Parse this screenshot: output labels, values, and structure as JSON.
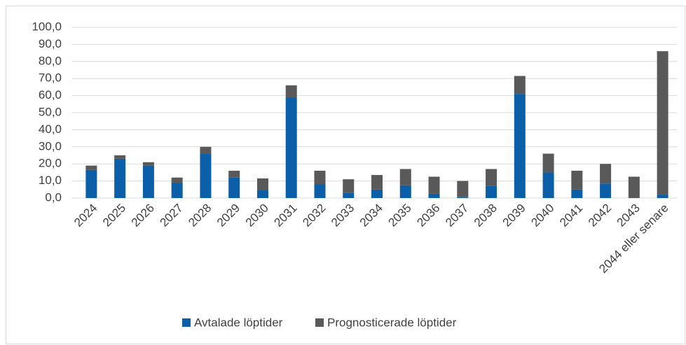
{
  "chart_data": {
    "type": "stacked_bar",
    "categories": [
      "2024",
      "2025",
      "2026",
      "2027",
      "2028",
      "2029",
      "2030",
      "2031",
      "2032",
      "2033",
      "2034",
      "2035",
      "2036",
      "2037",
      "2038",
      "2039",
      "2040",
      "2041",
      "2042",
      "2043",
      "2044 eller senare"
    ],
    "series": [
      {
        "name": "Avtalade löptider",
        "color": "#0b5ea8",
        "values": [
          16.5,
          23,
          19,
          9,
          26,
          12,
          4.5,
          59,
          8,
          3,
          5,
          7.5,
          2.5,
          0.5,
          7,
          61,
          15,
          5,
          8.5,
          0,
          2
        ]
      },
      {
        "name": "Prognosticerade löptider",
        "color": "#595959",
        "values": [
          2.5,
          2,
          2,
          3,
          4,
          4,
          7,
          7,
          8,
          8,
          8.5,
          9.5,
          10,
          9.5,
          10,
          10.5,
          11,
          11,
          11.5,
          12.5,
          84
        ]
      }
    ],
    "ylim": [
      0,
      100
    ],
    "yticks": [
      {
        "value": 0,
        "label": "0,0"
      },
      {
        "value": 10,
        "label": "10,0"
      },
      {
        "value": 20,
        "label": "20,0"
      },
      {
        "value": 30,
        "label": "30,0"
      },
      {
        "value": 40,
        "label": "40,0"
      },
      {
        "value": 50,
        "label": "50,0"
      },
      {
        "value": 60,
        "label": "60,0"
      },
      {
        "value": 70,
        "label": "70,0"
      },
      {
        "value": 80,
        "label": "80,0"
      },
      {
        "value": 90,
        "label": "90,0"
      },
      {
        "value": 100,
        "label": "100,0"
      }
    ],
    "grid": true,
    "legend": "bottom"
  }
}
